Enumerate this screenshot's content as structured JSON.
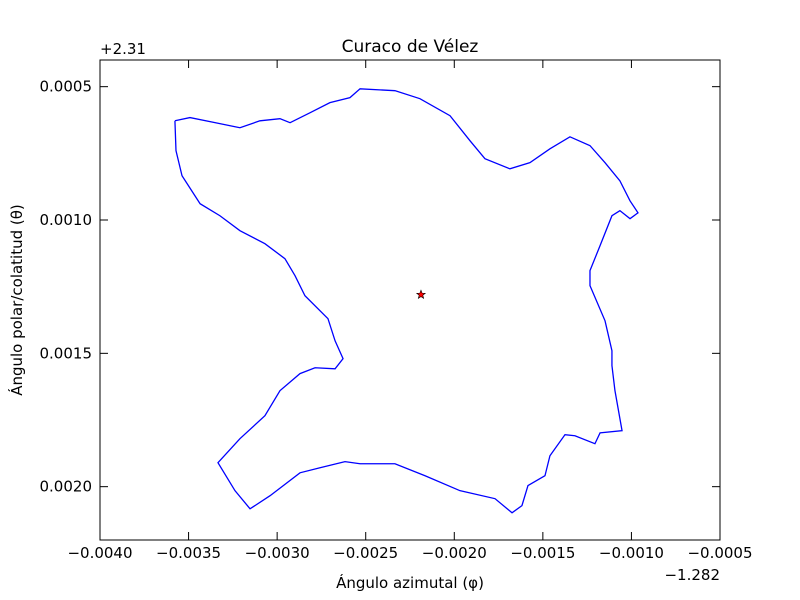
{
  "chart_data": {
    "type": "line",
    "title": "Curaco de Vélez",
    "xlabel": "Ángulo azimutal (φ)",
    "ylabel": "Ángulo polar/colatitud (θ)",
    "x_offset": "−1.282",
    "y_offset": "+2.31",
    "xlim": [
      -0.004,
      -0.0005
    ],
    "ylim": [
      0.0022,
      0.0004
    ],
    "xticks": [
      {
        "value": -0.004,
        "label": "−0.0040"
      },
      {
        "value": -0.0035,
        "label": "−0.0035"
      },
      {
        "value": -0.003,
        "label": "−0.0030"
      },
      {
        "value": -0.0025,
        "label": "−0.0025"
      },
      {
        "value": -0.002,
        "label": "−0.0020"
      },
      {
        "value": -0.0015,
        "label": "−0.0015"
      },
      {
        "value": -0.001,
        "label": "−0.0010"
      },
      {
        "value": -0.0005,
        "label": "−0.0005"
      }
    ],
    "yticks": [
      0.0005,
      {
        "value": 0.001,
        "label": "0.0010"
      },
      0.0015,
      {
        "value": 0.002,
        "label": "0.0020"
      }
    ],
    "series": [
      {
        "color": "#0000ff",
        "x": [
          -0.003577,
          -0.003492,
          -0.003351,
          -0.00321,
          -0.003097,
          -0.002984,
          -0.002927,
          -0.002815,
          -0.002702,
          -0.002589,
          -0.002532,
          -0.002335,
          -0.002194,
          -0.002024,
          -0.001911,
          -0.001827,
          -0.001686,
          -0.001573,
          -0.00146,
          -0.001347,
          -0.001234,
          -0.001149,
          -0.001065,
          -0.001008,
          -0.000963,
          -0.001008,
          -0.001065,
          -0.00111,
          -0.001177,
          -0.001234,
          -0.001234,
          -0.001149,
          -0.00111,
          -0.00111,
          -0.001093,
          -0.001053,
          -0.001177,
          -0.001206,
          -0.001319,
          -0.001375,
          -0.00146,
          -0.001488,
          -0.001584,
          -0.001618,
          -0.001674,
          -0.00177,
          -0.001968,
          -0.002165,
          -0.002335,
          -0.002532,
          -0.002617,
          -0.002758,
          -0.002871,
          -0.00304,
          -0.003153,
          -0.003238,
          -0.003334,
          -0.00321,
          -0.003069,
          -0.002984,
          -0.002871,
          -0.002786,
          -0.002673,
          -0.002628,
          -0.002673,
          -0.002713,
          -0.002843,
          -0.002899,
          -0.002956,
          -0.003069,
          -0.00321,
          -0.003323,
          -0.003435,
          -0.003537,
          -0.003571,
          -0.003577
        ],
        "values": [
          0.000628,
          0.000616,
          0.000635,
          0.000654,
          0.000628,
          0.00062,
          0.000635,
          0.000598,
          0.00056,
          0.000541,
          0.000508,
          0.000515,
          0.000545,
          0.000609,
          0.000703,
          0.00077,
          0.000808,
          0.000785,
          0.000733,
          0.000688,
          0.000721,
          0.000785,
          0.000853,
          0.000928,
          0.000973,
          0.000995,
          0.000965,
          0.000984,
          0.001096,
          0.00119,
          0.001246,
          0.001378,
          0.00149,
          0.001546,
          0.00164,
          0.00179,
          0.001798,
          0.001839,
          0.001809,
          0.001805,
          0.001884,
          0.001959,
          0.001996,
          0.002071,
          0.002098,
          0.002045,
          0.002015,
          0.001959,
          0.001914,
          0.001914,
          0.001906,
          0.001929,
          0.001948,
          0.002034,
          0.002083,
          0.002015,
          0.00191,
          0.00182,
          0.001734,
          0.00164,
          0.001576,
          0.001554,
          0.001558,
          0.00152,
          0.001453,
          0.00137,
          0.001284,
          0.001209,
          0.001145,
          0.001089,
          0.00104,
          0.000984,
          0.000939,
          0.000834,
          0.00074,
          0.000628
        ]
      }
    ],
    "marker": {
      "x": -0.002188,
      "y": 0.00128,
      "color": "#ff0000",
      "shape": "star"
    }
  }
}
